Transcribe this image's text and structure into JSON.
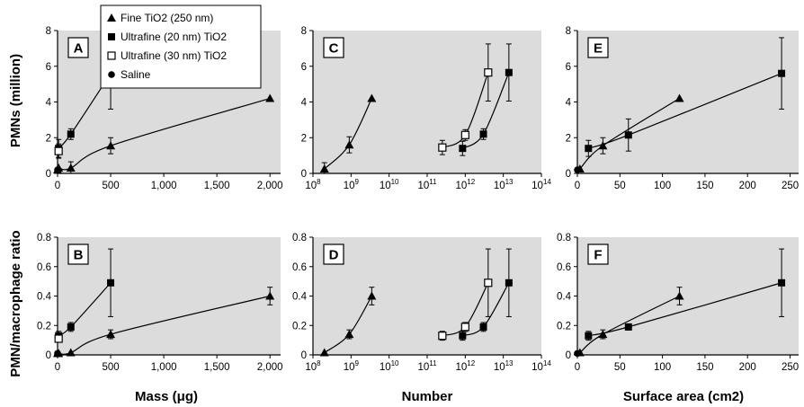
{
  "legend": {
    "entries": [
      {
        "name": "Fine TiO2 (250 nm)",
        "marker": "triangle"
      },
      {
        "name": "Ultrafine (20 nm) TiO2",
        "marker": "square-filled"
      },
      {
        "name": "Ultrafine (30 nm) TiO2",
        "marker": "square-open"
      },
      {
        "name": "Saline",
        "marker": "circle"
      }
    ]
  },
  "y_titles": {
    "top": "PMNs (million)",
    "bottom": "PMN/macrophage ratio"
  },
  "x_titles": {
    "mass": "Mass (μg)",
    "number": "Number",
    "surface": "Surface area (cm2)"
  },
  "chart_data": [
    {
      "panel": "A",
      "type": "scatter",
      "xlabel": "Mass (μg)",
      "ylabel": "PMNs (million)",
      "xscale": "linear",
      "xlim": [
        0,
        2100
      ],
      "ylim": [
        0,
        8
      ],
      "xticks": [
        0,
        500,
        1000,
        1500,
        2000
      ],
      "xtick_labels": [
        "0",
        "500",
        "1,000",
        "1,500",
        "2,000"
      ],
      "yticks": [
        0,
        2,
        4,
        6,
        8
      ],
      "series": [
        {
          "name": "Fine TiO2 (250 nm)",
          "marker": "triangle",
          "x": [
            0,
            10,
            125,
            500,
            2000
          ],
          "y": [
            0.2,
            0.3,
            0.3,
            1.55,
            4.2
          ],
          "err": [
            0,
            0,
            0.35,
            0.45,
            0
          ]
        },
        {
          "name": "Ultrafine (20 nm) TiO2",
          "marker": "square-filled",
          "x": [
            10,
            125,
            500
          ],
          "y": [
            1.4,
            2.2,
            5.6
          ],
          "err": [
            0.5,
            0.3,
            2.0
          ]
        },
        {
          "name": "Ultrafine (30 nm) TiO2",
          "marker": "square-open",
          "x": [
            10
          ],
          "y": [
            1.25
          ],
          "err": [
            0.4
          ]
        },
        {
          "name": "Saline",
          "marker": "circle",
          "x": [
            0
          ],
          "y": [
            0.2
          ],
          "err": [
            0
          ]
        }
      ]
    },
    {
      "panel": "B",
      "type": "scatter",
      "xlabel": "Mass (μg)",
      "ylabel": "PMN/macrophage ratio",
      "xscale": "linear",
      "xlim": [
        0,
        2100
      ],
      "ylim": [
        0,
        0.8
      ],
      "xticks": [
        0,
        500,
        1000,
        1500,
        2000
      ],
      "xtick_labels": [
        "0",
        "500",
        "1,000",
        "1,500",
        "2,000"
      ],
      "yticks": [
        0,
        0.2,
        0.4,
        0.6,
        0.8
      ],
      "series": [
        {
          "name": "Fine TiO2 (250 nm)",
          "marker": "triangle",
          "x": [
            0,
            10,
            125,
            500,
            2000
          ],
          "y": [
            0.01,
            0.01,
            0.015,
            0.14,
            0.4
          ],
          "err": [
            0,
            0,
            0,
            0.03,
            0.06
          ]
        },
        {
          "name": "Ultrafine (20 nm) TiO2",
          "marker": "square-filled",
          "x": [
            10,
            125,
            500
          ],
          "y": [
            0.13,
            0.19,
            0.49
          ],
          "err": [
            0.03,
            0.03,
            0.23
          ]
        },
        {
          "name": "Ultrafine (30 nm) TiO2",
          "marker": "square-open",
          "x": [
            10
          ],
          "y": [
            0.11
          ],
          "err": [
            0.02
          ]
        },
        {
          "name": "Saline",
          "marker": "circle",
          "x": [
            0
          ],
          "y": [
            0.01
          ],
          "err": [
            0
          ]
        }
      ]
    },
    {
      "panel": "C",
      "type": "scatter",
      "xlabel": "Number",
      "ylabel": "PMNs (million)",
      "xscale": "log",
      "xlim": [
        100000000.0,
        100000000000000.0
      ],
      "ylim": [
        0,
        8
      ],
      "xtick_exponents": [
        8,
        9,
        10,
        11,
        12,
        13,
        14
      ],
      "yticks": [
        0,
        2,
        4,
        6,
        8
      ],
      "series": [
        {
          "name": "Fine TiO2 (250 nm)",
          "marker": "triangle",
          "x": [
            200000000.0,
            900000000.0,
            3500000000.0
          ],
          "y": [
            0.25,
            1.6,
            4.2
          ],
          "err": [
            0.35,
            0.45,
            0
          ]
        },
        {
          "name": "Ultrafine (30 nm) TiO2",
          "marker": "square-open",
          "x": [
            250000000000.0,
            1000000000000.0,
            4000000000000.0
          ],
          "y": [
            1.45,
            2.15,
            5.65
          ],
          "err": [
            0.4,
            0.3,
            1.6
          ]
        },
        {
          "name": "Ultrafine (20 nm) TiO2",
          "marker": "square-filled",
          "x": [
            850000000000.0,
            3000000000000.0,
            14000000000000.0
          ],
          "y": [
            1.4,
            2.2,
            5.65
          ],
          "err": [
            0.4,
            0.3,
            1.6
          ]
        }
      ]
    },
    {
      "panel": "D",
      "type": "scatter",
      "xlabel": "Number",
      "ylabel": "PMN/macrophage ratio",
      "xscale": "log",
      "xlim": [
        100000000.0,
        100000000000000.0
      ],
      "ylim": [
        0,
        0.8
      ],
      "xtick_exponents": [
        8,
        9,
        10,
        11,
        12,
        13,
        14
      ],
      "yticks": [
        0,
        0.2,
        0.4,
        0.6,
        0.8
      ],
      "series": [
        {
          "name": "Fine TiO2 (250 nm)",
          "marker": "triangle",
          "x": [
            200000000.0,
            900000000.0,
            3500000000.0
          ],
          "y": [
            0.015,
            0.14,
            0.4
          ],
          "err": [
            0,
            0.03,
            0.06
          ]
        },
        {
          "name": "Ultrafine (30 nm) TiO2",
          "marker": "square-open",
          "x": [
            250000000000.0,
            1000000000000.0,
            4000000000000.0
          ],
          "y": [
            0.13,
            0.19,
            0.49
          ],
          "err": [
            0.03,
            0.03,
            0.23
          ]
        },
        {
          "name": "Ultrafine (20 nm) TiO2",
          "marker": "square-filled",
          "x": [
            850000000000.0,
            3000000000000.0,
            14000000000000.0
          ],
          "y": [
            0.13,
            0.19,
            0.49
          ],
          "err": [
            0.03,
            0.03,
            0.23
          ]
        }
      ]
    },
    {
      "panel": "E",
      "type": "scatter",
      "xlabel": "Surface area (cm2)",
      "ylabel": "PMNs (million)",
      "xscale": "linear",
      "xlim": [
        0,
        260
      ],
      "ylim": [
        0,
        8
      ],
      "xticks": [
        0,
        50,
        100,
        150,
        200,
        250
      ],
      "xtick_labels": [
        "0",
        "50",
        "100",
        "150",
        "200",
        "250"
      ],
      "yticks": [
        0,
        2,
        4,
        6,
        8
      ],
      "series": [
        {
          "name": "Saline",
          "marker": "circle",
          "x": [
            0
          ],
          "y": [
            0.2
          ],
          "err": [
            0
          ]
        },
        {
          "name": "Fine TiO2 (250 nm)",
          "marker": "triangle",
          "x": [
            3,
            30,
            120
          ],
          "y": [
            0.25,
            1.55,
            4.2
          ],
          "err": [
            0,
            0.45,
            0
          ]
        },
        {
          "name": "Ultrafine (20 nm) TiO2",
          "marker": "square-filled",
          "x": [
            13,
            60,
            240
          ],
          "y": [
            1.4,
            2.15,
            5.6
          ],
          "err": [
            0.45,
            0.9,
            2.0
          ]
        }
      ]
    },
    {
      "panel": "F",
      "type": "scatter",
      "xlabel": "Surface area (cm2)",
      "ylabel": "PMN/macrophage ratio",
      "xscale": "linear",
      "xlim": [
        0,
        260
      ],
      "ylim": [
        0,
        0.8
      ],
      "xticks": [
        0,
        50,
        100,
        150,
        200,
        250
      ],
      "xtick_labels": [
        "0",
        "50",
        "100",
        "150",
        "200",
        "250"
      ],
      "yticks": [
        0,
        0.2,
        0.4,
        0.6,
        0.8
      ],
      "series": [
        {
          "name": "Saline",
          "marker": "circle",
          "x": [
            0
          ],
          "y": [
            0.01
          ],
          "err": [
            0
          ]
        },
        {
          "name": "Fine TiO2 (250 nm)",
          "marker": "triangle",
          "x": [
            3,
            30,
            120
          ],
          "y": [
            0.015,
            0.14,
            0.4
          ],
          "err": [
            0,
            0.03,
            0.06
          ]
        },
        {
          "name": "Ultrafine (20 nm) TiO2",
          "marker": "square-filled",
          "x": [
            13,
            60,
            240
          ],
          "y": [
            0.13,
            0.19,
            0.49
          ],
          "err": [
            0.03,
            0.02,
            0.23
          ]
        }
      ]
    }
  ]
}
